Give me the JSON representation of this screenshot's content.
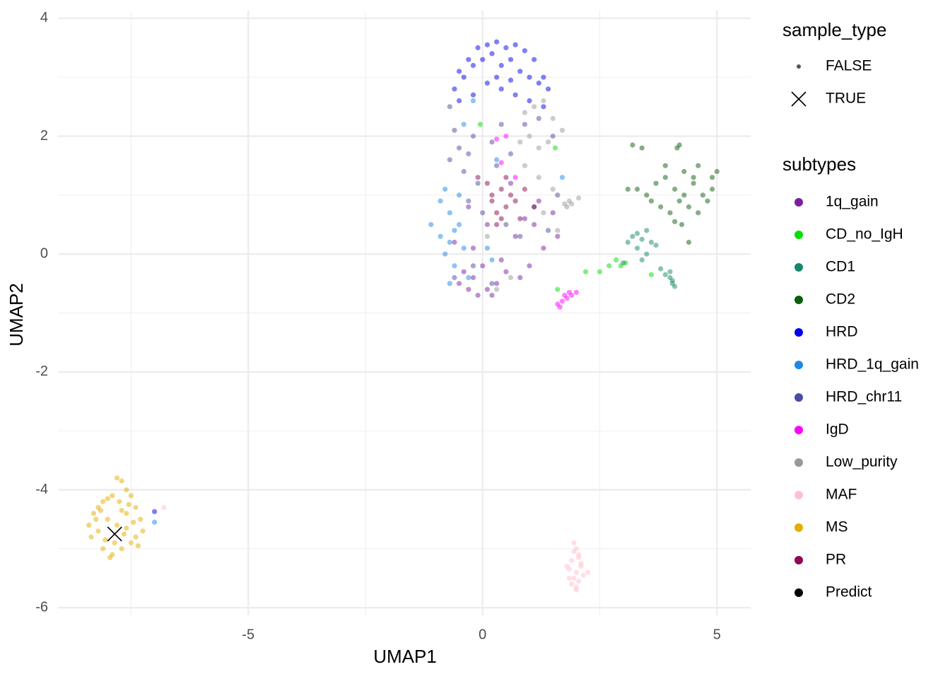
{
  "chart_data": {
    "type": "scatter",
    "x_label": "UMAP1",
    "y_label": "UMAP2",
    "xlim": [
      -9.06,
      5.72
    ],
    "ylim": [
      -6.13,
      4.13
    ],
    "xticks": [
      -5,
      0,
      5
    ],
    "yticks": [
      4,
      2,
      0,
      -2,
      -4,
      -6
    ],
    "x_minor_grid": [
      -7.5,
      -2.5,
      2.5
    ],
    "y_minor_grid": [
      3,
      1,
      -1,
      -3,
      -5
    ],
    "grid": true,
    "shape_legend": {
      "title": "sample_type",
      "labels": [
        "FALSE",
        "TRUE"
      ],
      "shapes": [
        "dot",
        "cross"
      ]
    },
    "color_legend_title": "subtypes",
    "series": [
      {
        "name": "1q_gain",
        "color": "#7b1fa2",
        "shape": "dot",
        "x": [
          -0.5,
          -0.3,
          -0.1,
          0.1,
          0.3,
          -0.4,
          -0.2,
          0.0,
          0.2,
          0.5,
          0.8,
          1.0,
          1.3,
          1.6,
          -0.3,
          0.1,
          0.6,
          0.9,
          1.2,
          -0.6,
          -0.2,
          0.4,
          0.7,
          1.1,
          1.5
        ],
        "y": [
          -0.5,
          -0.6,
          -0.7,
          -0.6,
          -0.5,
          -0.3,
          -0.4,
          -0.2,
          -0.7,
          -0.3,
          -0.4,
          -0.2,
          0.1,
          0.3,
          0.8,
          0.5,
          1.2,
          0.6,
          0.9,
          0.2,
          0.1,
          -0.1,
          0.3,
          0.5,
          0.7
        ]
      },
      {
        "name": "CD_no_IgH",
        "color": "#00e000",
        "shape": "dot",
        "x": [
          2.2,
          2.5,
          2.7,
          2.85,
          2.95,
          3.05,
          3.6,
          -0.05,
          1.55,
          1.6
        ],
        "y": [
          -0.3,
          -0.3,
          -0.2,
          -0.1,
          -0.2,
          -0.15,
          -0.35,
          2.2,
          1.8,
          -0.6
        ]
      },
      {
        "name": "CD1",
        "color": "#16876a",
        "shape": "dot",
        "x": [
          3.1,
          3.2,
          3.3,
          3.4,
          3.5,
          3.6,
          3.7,
          3.3,
          3.5,
          3.4,
          4.0,
          4.05,
          4.1,
          4.0,
          3.8,
          3.9,
          4.05,
          3.0
        ],
        "y": [
          0.2,
          0.3,
          0.35,
          0.25,
          0.4,
          0.2,
          0.15,
          0.1,
          0.0,
          -0.1,
          -0.4,
          -0.5,
          -0.55,
          -0.3,
          -0.25,
          -0.35,
          -0.45,
          -0.15
        ]
      },
      {
        "name": "CD2",
        "color": "#0b5e0b",
        "shape": "dot",
        "x": [
          3.3,
          3.5,
          3.7,
          3.9,
          4.1,
          4.3,
          4.5,
          4.7,
          4.9,
          5.0,
          3.6,
          3.8,
          4.0,
          4.2,
          4.4,
          4.6,
          4.8,
          4.15,
          4.2,
          3.4,
          3.9,
          4.3,
          4.6,
          4.9,
          4.1,
          4.25,
          4.4,
          3.2,
          3.1,
          4.5
        ],
        "y": [
          1.1,
          1.0,
          1.2,
          1.3,
          1.1,
          1.0,
          1.2,
          1.0,
          1.3,
          1.4,
          0.9,
          0.8,
          0.7,
          0.9,
          0.8,
          0.7,
          0.9,
          1.8,
          1.85,
          1.8,
          1.5,
          1.4,
          1.5,
          1.1,
          0.55,
          0.5,
          0.2,
          1.85,
          1.1,
          1.3
        ]
      },
      {
        "name": "HRD",
        "color": "#0000ee",
        "shape": "dot",
        "x": [
          -0.5,
          -0.3,
          -0.1,
          0.1,
          0.3,
          0.5,
          0.7,
          0.9,
          1.1,
          1.3,
          -0.6,
          -0.4,
          -0.2,
          0.0,
          0.2,
          0.4,
          0.6,
          0.8,
          1.0,
          1.2,
          1.4,
          -0.5,
          -0.2,
          0.1,
          0.4,
          0.7,
          1.0,
          1.3,
          0.3,
          0.6,
          -7.0
        ],
        "y": [
          3.1,
          3.3,
          3.5,
          3.55,
          3.6,
          3.5,
          3.55,
          3.45,
          3.3,
          3.0,
          2.8,
          3.0,
          3.2,
          3.3,
          3.4,
          3.2,
          3.3,
          3.1,
          3.0,
          2.9,
          2.8,
          2.6,
          2.7,
          2.9,
          2.8,
          2.7,
          2.6,
          2.5,
          3.0,
          2.95,
          -4.37
        ]
      },
      {
        "name": "HRD_1q_gain",
        "color": "#1e88e5",
        "shape": "dot",
        "x": [
          -1.1,
          -0.9,
          -0.8,
          -0.7,
          -0.6,
          -0.9,
          -0.7,
          -0.5,
          -0.8,
          -0.6,
          -0.4,
          -0.3,
          -0.7,
          -0.5,
          0.1,
          0.2,
          -0.4,
          -0.2,
          0.3,
          1.7,
          -7.0
        ],
        "y": [
          0.5,
          0.9,
          1.1,
          0.7,
          0.4,
          0.3,
          0.2,
          0.5,
          0.0,
          -0.2,
          0.1,
          -0.4,
          -0.5,
          1.0,
          0.1,
          -0.1,
          2.2,
          2.6,
          1.6,
          1.3,
          -4.55
        ]
      },
      {
        "name": "HRD_chr11",
        "color": "#4b4ba3",
        "shape": "dot",
        "x": [
          -0.7,
          -0.6,
          -0.5,
          -0.7,
          -0.3,
          -0.2,
          0.2,
          0.4,
          -0.4,
          -0.1,
          0.3,
          0.6,
          0.9,
          1.2,
          1.5,
          -0.3,
          0.0,
          0.5,
          0.8,
          1.1,
          1.4,
          -0.6,
          -0.2,
          0.2,
          1.6
        ],
        "y": [
          2.5,
          2.1,
          1.8,
          1.6,
          1.7,
          2.0,
          1.9,
          2.2,
          1.4,
          1.2,
          1.5,
          1.7,
          2.2,
          2.3,
          2.0,
          0.9,
          0.7,
          0.5,
          0.3,
          0.8,
          0.4,
          -0.4,
          -0.2,
          -0.5,
          1.0
        ]
      },
      {
        "name": "IgD",
        "color": "#ff00ff",
        "shape": "dot",
        "x": [
          1.6,
          1.7,
          1.8,
          1.75,
          1.85,
          1.9,
          2.0,
          1.65,
          0.3,
          0.5,
          0.7,
          0.4
        ],
        "y": [
          -0.85,
          -0.8,
          -0.75,
          -0.7,
          -0.65,
          -0.7,
          -0.65,
          -0.9,
          1.95,
          2.0,
          1.3,
          1.55
        ]
      },
      {
        "name": "Low_purity",
        "color": "#999999",
        "shape": "dot",
        "x": [
          0.9,
          1.1,
          1.3,
          1.5,
          1.7,
          0.8,
          1.0,
          1.2,
          1.4,
          0.9,
          1.2,
          1.5,
          1.75,
          1.8,
          1.85,
          1.9,
          2.05,
          0.1,
          0.3,
          1.3,
          1.6,
          0.6
        ],
        "y": [
          2.4,
          2.5,
          2.6,
          2.3,
          2.1,
          1.9,
          2.0,
          1.8,
          1.9,
          1.5,
          1.3,
          1.1,
          0.85,
          0.8,
          0.9,
          0.85,
          0.95,
          0.3,
          -0.6,
          0.7,
          0.4,
          -0.4
        ]
      },
      {
        "name": "MAF",
        "color": "#ffc0cb",
        "shape": "dot",
        "x": [
          1.95,
          2.0,
          2.05,
          1.9,
          2.1,
          1.85,
          2.0,
          2.15,
          1.95,
          2.05,
          1.9,
          2.0,
          1.8,
          2.1,
          2.0,
          1.95,
          2.25,
          1.85,
          2.05,
          -6.8
        ],
        "y": [
          -4.9,
          -5.0,
          -5.1,
          -5.2,
          -5.3,
          -5.35,
          -5.4,
          -5.45,
          -5.5,
          -5.55,
          -5.6,
          -5.65,
          -5.3,
          -5.25,
          -5.7,
          -5.05,
          -5.4,
          -5.5,
          -5.15,
          -4.3
        ]
      },
      {
        "name": "MS",
        "color": "#e6ac00",
        "shape": "dot",
        "x": [
          -7.8,
          -7.7,
          -7.6,
          -7.9,
          -8.0,
          -8.1,
          -8.2,
          -8.3,
          -8.4,
          -8.35,
          -8.2,
          -8.0,
          -7.8,
          -7.6,
          -7.4,
          -7.3,
          -7.25,
          -7.5,
          -7.7,
          -7.9,
          -8.1,
          -7.75,
          -7.55,
          -7.45,
          -7.65,
          -7.85,
          -8.05,
          -8.25,
          -7.35,
          -7.95,
          -7.7,
          -7.6,
          -7.5,
          -7.4,
          -8.15
        ],
        "y": [
          -3.8,
          -3.85,
          -4.0,
          -4.1,
          -4.15,
          -4.2,
          -4.3,
          -4.4,
          -4.6,
          -4.8,
          -4.7,
          -4.5,
          -4.6,
          -4.4,
          -4.3,
          -4.5,
          -4.7,
          -4.9,
          -5.0,
          -5.1,
          -5.0,
          -4.2,
          -4.25,
          -4.55,
          -4.75,
          -4.9,
          -4.85,
          -4.5,
          -4.95,
          -5.15,
          -4.35,
          -4.65,
          -4.1,
          -4.8,
          -4.35
        ]
      },
      {
        "name": "PR",
        "color": "#8b0a50",
        "shape": "dot",
        "x": [
          -0.1,
          0.1,
          0.2,
          0.3,
          0.4,
          0.5,
          0.6,
          0.7,
          0.8,
          0.3,
          0.5,
          0.9,
          1.1,
          0.4,
          0.2
        ],
        "y": [
          1.3,
          1.2,
          0.9,
          0.7,
          1.1,
          0.8,
          1.0,
          0.9,
          0.6,
          0.5,
          1.3,
          1.1,
          0.8,
          0.6,
          1.0
        ]
      },
      {
        "name": "Predict",
        "color": "#000000",
        "shape": "cross",
        "x": [
          -7.85
        ],
        "y": [
          -4.75
        ]
      }
    ]
  }
}
